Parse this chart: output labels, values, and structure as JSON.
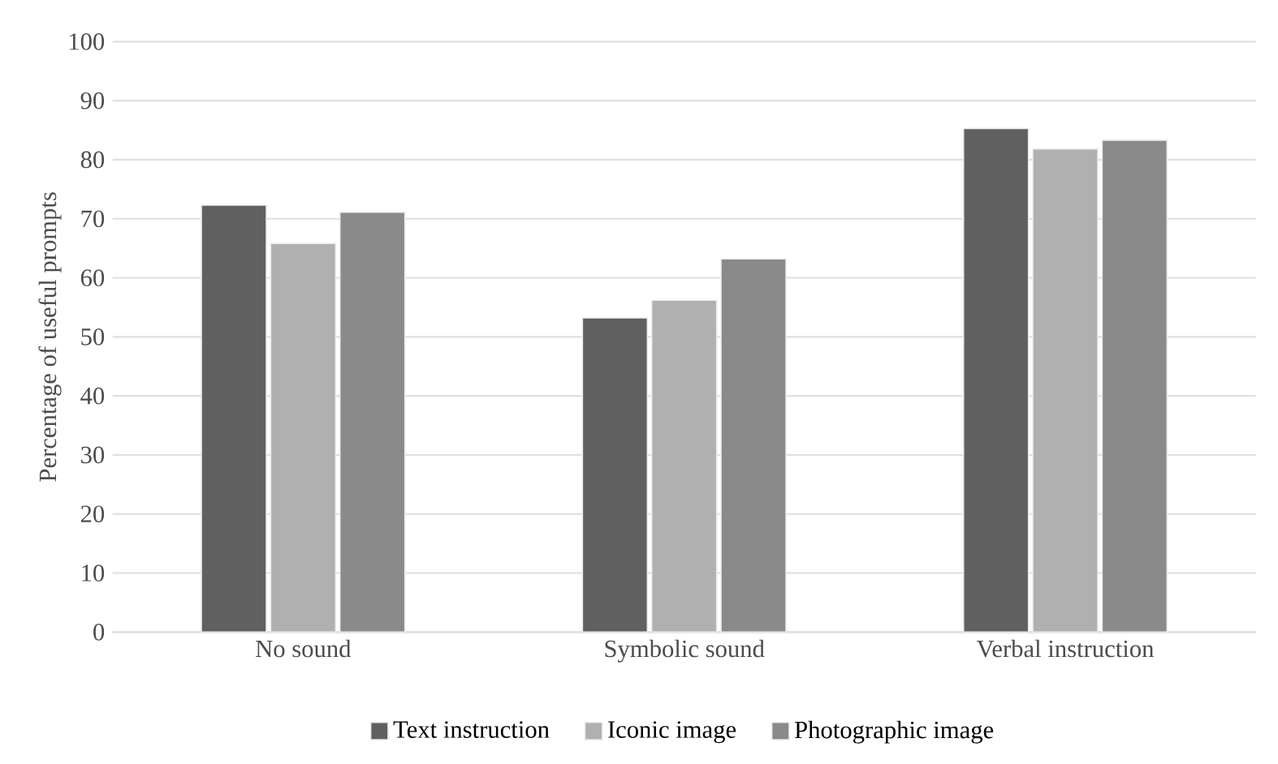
{
  "chart_data": {
    "type": "bar",
    "ylabel": "Percentage of useful prompts",
    "categories": [
      "No sound",
      "Symbolic sound",
      "Verbal instruction"
    ],
    "series": [
      {
        "name": "Text instruction",
        "color": "#606060",
        "values": [
          72.3,
          53.2,
          85.3
        ]
      },
      {
        "name": "Iconic image",
        "color": "#b0b0b0",
        "values": [
          65.8,
          56.2,
          81.8
        ]
      },
      {
        "name": "Photographic image",
        "color": "#8a8a8a",
        "values": [
          71.1,
          63.2,
          83.3
        ]
      }
    ],
    "ylim": [
      0,
      100
    ],
    "yticks": [
      0,
      10,
      20,
      30,
      40,
      50,
      60,
      70,
      80,
      90,
      100
    ],
    "grid": "y",
    "legend": "bottom"
  }
}
